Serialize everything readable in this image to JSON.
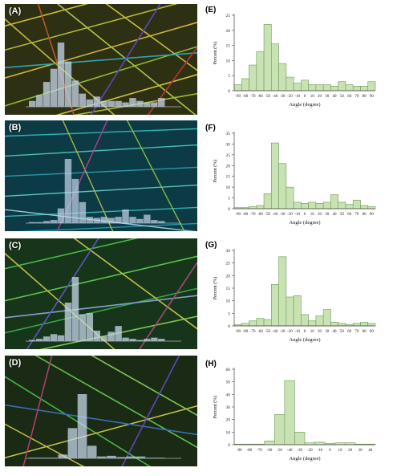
{
  "panels": [
    {
      "label": "(A)"
    },
    {
      "label": "(B)"
    },
    {
      "label": "(C)"
    },
    {
      "label": "(D)"
    }
  ],
  "colors": {
    "bar_fill": "#c9e2b3",
    "bar_stroke": "#6f9a55",
    "overlay_bar": "#c6d7ea"
  },
  "chart_data": [
    {
      "label": "(E)",
      "type": "bar",
      "categories": [
        "-90",
        "-80",
        "-70",
        "-60",
        "-50",
        "-40",
        "-30",
        "-20",
        "-10",
        "0",
        "10",
        "20",
        "30",
        "40",
        "50",
        "60",
        "70",
        "80",
        "90"
      ],
      "values": [
        2,
        4,
        8.5,
        13,
        22,
        15.5,
        9,
        4.5,
        2.5,
        3.5,
        2,
        2,
        2,
        1.5,
        3,
        2,
        1.5,
        1.5,
        3
      ],
      "ylim": [
        0,
        25
      ],
      "yticks": [
        0,
        5,
        10,
        15,
        20,
        25
      ],
      "xlabel": "Angle (degree)",
      "ylabel": "Percent (%)"
    },
    {
      "label": "(F)",
      "type": "bar",
      "categories": [
        "-90",
        "-80",
        "-70",
        "-60",
        "-50",
        "-40",
        "-30",
        "-20",
        "-10",
        "0",
        "10",
        "20",
        "30",
        "40",
        "50",
        "60",
        "70",
        "80",
        "90"
      ],
      "values": [
        0.5,
        0.5,
        1,
        1.5,
        7,
        30.5,
        21,
        10,
        3,
        2.5,
        3,
        2.5,
        3,
        6.5,
        3,
        2,
        4,
        1.5,
        1
      ],
      "ylim": [
        0,
        35
      ],
      "yticks": [
        0,
        5,
        10,
        15,
        20,
        25,
        30,
        35
      ],
      "xlabel": "Angle (degree)",
      "ylabel": "Percent (%)"
    },
    {
      "label": "(G)",
      "type": "bar",
      "categories": [
        "-90",
        "-80",
        "-70",
        "-60",
        "-50",
        "-40",
        "-30",
        "-20",
        "-10",
        "0",
        "10",
        "20",
        "30",
        "40",
        "50",
        "60",
        "70",
        "80",
        "90"
      ],
      "values": [
        0.5,
        1,
        2,
        3,
        2.5,
        16.5,
        27.5,
        11.5,
        12,
        4.5,
        2,
        4,
        6.5,
        1.5,
        1,
        0.5,
        1,
        1.5,
        1
      ],
      "ylim": [
        0,
        30
      ],
      "yticks": [
        0,
        5,
        10,
        15,
        20,
        25,
        30
      ],
      "xlabel": "Angle (degree)",
      "ylabel": "Percent (%)"
    },
    {
      "label": "(H)",
      "type": "bar",
      "categories": [
        "-90",
        "-80",
        "-70",
        "-60",
        "-50",
        "-40",
        "-30",
        "-20",
        "-10",
        "0",
        "10",
        "20",
        "30",
        "40"
      ],
      "values": [
        0.5,
        0.5,
        0.5,
        3,
        24,
        51,
        10,
        1.5,
        2,
        1,
        1.5,
        1.5,
        0.5,
        0.5
      ],
      "ylim": [
        0,
        60
      ],
      "yticks": [
        0,
        10,
        20,
        30,
        40,
        50,
        60
      ],
      "xlabel": "Angle (degree)",
      "ylabel": "Percent (%)"
    }
  ]
}
